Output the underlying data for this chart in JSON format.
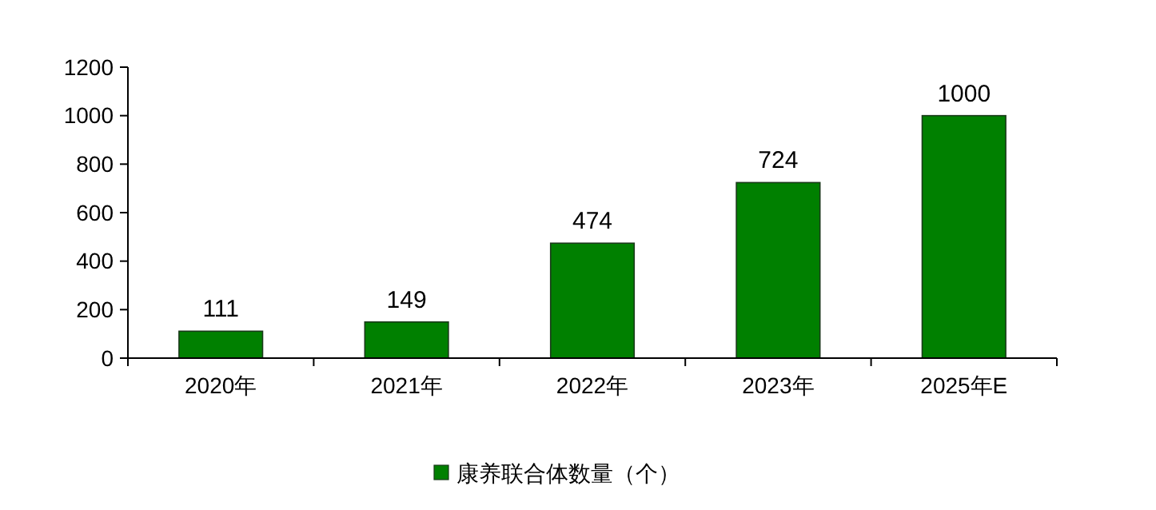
{
  "chart_data": {
    "type": "bar",
    "categories": [
      "2020年",
      "2021年",
      "2022年",
      "2023年",
      "2025年E"
    ],
    "series": [
      {
        "name": "康养联合体数量（个）",
        "color": "#008000",
        "values": [
          111,
          149,
          474,
          724,
          1000
        ]
      }
    ],
    "ylim": [
      0,
      1200
    ],
    "yticks": [
      0,
      200,
      400,
      600,
      800,
      1000,
      1200
    ],
    "data_labels": true,
    "grid": false,
    "legend": "bottom"
  }
}
